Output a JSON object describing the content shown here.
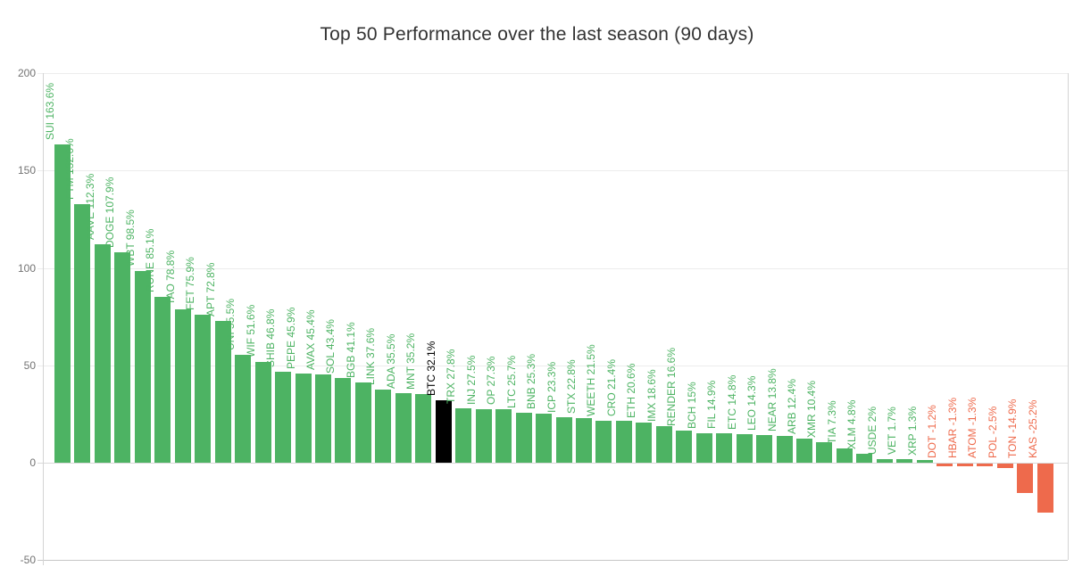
{
  "chart_data": {
    "type": "bar",
    "title": "Top 50 Performance over the last season (90 days)",
    "xlabel": "",
    "ylabel": "",
    "ylim": [
      -50,
      200
    ],
    "yticks": [
      200,
      150,
      100,
      50,
      0,
      -50
    ],
    "grid": true,
    "legend": "none",
    "value_suffix": "%",
    "colors": {
      "positive": "#4db363",
      "negative": "#ee6a4c",
      "highlight": "#000000",
      "grid": "#ececec",
      "axis": "#c6c6c6",
      "tick_label": "#737373",
      "title": "#333333"
    },
    "points": [
      {
        "label": "SUI",
        "value": 163.6
      },
      {
        "label": "FTM",
        "value": 132.6
      },
      {
        "label": "AAVE",
        "value": 112.3
      },
      {
        "label": "DOGE",
        "value": 107.9
      },
      {
        "label": "WBT",
        "value": 98.5
      },
      {
        "label": "RUNE",
        "value": 85.1
      },
      {
        "label": "TAO",
        "value": 78.8
      },
      {
        "label": "FET",
        "value": 75.9
      },
      {
        "label": "APT",
        "value": 72.8
      },
      {
        "label": "UNI",
        "value": 55.5
      },
      {
        "label": "WIF",
        "value": 51.6
      },
      {
        "label": "SHIB",
        "value": 46.8
      },
      {
        "label": "PEPE",
        "value": 45.9
      },
      {
        "label": "AVAX",
        "value": 45.4
      },
      {
        "label": "SOL",
        "value": 43.4
      },
      {
        "label": "BGB",
        "value": 41.1
      },
      {
        "label": "LINK",
        "value": 37.6
      },
      {
        "label": "ADA",
        "value": 35.5
      },
      {
        "label": "MNT",
        "value": 35.2
      },
      {
        "label": "BTC",
        "value": 32.1,
        "highlight": true
      },
      {
        "label": "TRX",
        "value": 27.8
      },
      {
        "label": "INJ",
        "value": 27.5
      },
      {
        "label": "OP",
        "value": 27.3
      },
      {
        "label": "LTC",
        "value": 25.7
      },
      {
        "label": "BNB",
        "value": 25.3
      },
      {
        "label": "ICP",
        "value": 23.3
      },
      {
        "label": "STX",
        "value": 22.8
      },
      {
        "label": "WEETH",
        "value": 21.5
      },
      {
        "label": "CRO",
        "value": 21.4
      },
      {
        "label": "ETH",
        "value": 20.6
      },
      {
        "label": "IMX",
        "value": 18.6
      },
      {
        "label": "RENDER",
        "value": 16.6
      },
      {
        "label": "BCH",
        "value": 15
      },
      {
        "label": "FIL",
        "value": 14.9
      },
      {
        "label": "ETC",
        "value": 14.8
      },
      {
        "label": "LEO",
        "value": 14.3
      },
      {
        "label": "NEAR",
        "value": 13.8
      },
      {
        "label": "ARB",
        "value": 12.4
      },
      {
        "label": "XMR",
        "value": 10.4
      },
      {
        "label": "TIA",
        "value": 7.3
      },
      {
        "label": "XLM",
        "value": 4.8
      },
      {
        "label": "USDE",
        "value": 2
      },
      {
        "label": "VET",
        "value": 1.7
      },
      {
        "label": "XRP",
        "value": 1.3
      },
      {
        "label": "DOT",
        "value": -1.2
      },
      {
        "label": "HBAR",
        "value": -1.3
      },
      {
        "label": "ATOM",
        "value": -1.3
      },
      {
        "label": "POL",
        "value": -2.5
      },
      {
        "label": "TON",
        "value": -14.9
      },
      {
        "label": "KAS",
        "value": -25.2
      }
    ]
  }
}
